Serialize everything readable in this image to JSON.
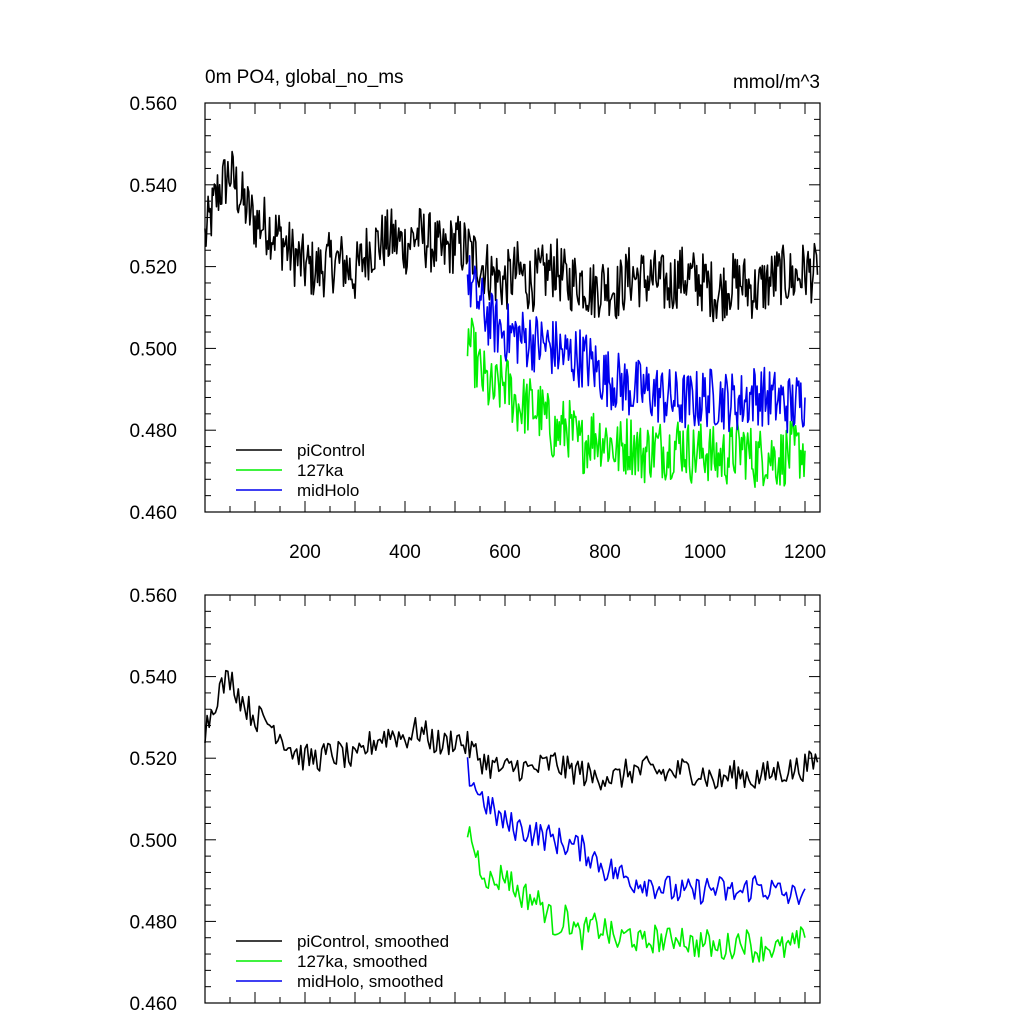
{
  "chart_data": [
    {
      "type": "line",
      "title": "0m PO4, global_no_ms",
      "units": "mmol/m^3",
      "xlim": [
        0,
        1230
      ],
      "ylim": [
        0.46,
        0.56
      ],
      "xticks": [
        200,
        400,
        600,
        800,
        1000,
        1200
      ],
      "xtick_labels": [
        "200",
        "400",
        "600",
        "800",
        "1000",
        "1200"
      ],
      "yticks": [
        0.46,
        0.48,
        0.5,
        0.52,
        0.54,
        0.56
      ],
      "ytick_labels": [
        "0.460",
        "0.480",
        "0.500",
        "0.520",
        "0.540",
        "0.560"
      ],
      "legend_position": "bottom-left",
      "series": [
        {
          "name": "piControl",
          "color": "#000000",
          "x_start": 0,
          "x_step": 25,
          "values": [
            0.527,
            0.538,
            0.543,
            0.536,
            0.531,
            0.53,
            0.527,
            0.523,
            0.52,
            0.519,
            0.521,
            0.521,
            0.518,
            0.524,
            0.526,
            0.527,
            0.525,
            0.528,
            0.526,
            0.523,
            0.526,
            0.524,
            0.521,
            0.518,
            0.516,
            0.519,
            0.516,
            0.518,
            0.52,
            0.516,
            0.517,
            0.514,
            0.516,
            0.514,
            0.518,
            0.517,
            0.517,
            0.515,
            0.518,
            0.517,
            0.516,
            0.513,
            0.516,
            0.516,
            0.514,
            0.516,
            0.518,
            0.517,
            0.519,
            0.518
          ]
        },
        {
          "name": "127ka",
          "color": "#00ee00",
          "x_start": 525,
          "x_step": 25,
          "values": [
            0.503,
            0.494,
            0.489,
            0.492,
            0.486,
            0.486,
            0.484,
            0.479,
            0.481,
            0.476,
            0.479,
            0.478,
            0.475,
            0.477,
            0.474,
            0.476,
            0.475,
            0.477,
            0.474,
            0.475,
            0.473,
            0.474,
            0.476,
            0.473,
            0.474,
            0.473,
            0.475,
            0.475
          ]
        },
        {
          "name": "midHolo",
          "color": "#0000ee",
          "x_start": 525,
          "x_step": 25,
          "values": [
            0.517,
            0.511,
            0.506,
            0.504,
            0.503,
            0.502,
            0.501,
            0.5,
            0.498,
            0.498,
            0.496,
            0.493,
            0.492,
            0.49,
            0.49,
            0.489,
            0.488,
            0.487,
            0.487,
            0.488,
            0.488,
            0.487,
            0.487,
            0.489,
            0.488,
            0.487,
            0.486,
            0.488
          ]
        }
      ]
    },
    {
      "type": "line",
      "title": "",
      "xlim": [
        0,
        1230
      ],
      "ylim": [
        0.46,
        0.56
      ],
      "xticks": [
        200,
        400,
        600,
        800,
        1000,
        1200
      ],
      "yticks": [
        0.46,
        0.48,
        0.5,
        0.52,
        0.54,
        0.56
      ],
      "ytick_labels": [
        "0.460",
        "0.480",
        "0.500",
        "0.520",
        "0.540",
        "0.560"
      ],
      "legend_position": "bottom-left",
      "series": [
        {
          "name": "piControl, smoothed",
          "color": "#000000",
          "x_start": 0,
          "x_step": 25,
          "values": [
            0.527,
            0.536,
            0.54,
            0.534,
            0.53,
            0.529,
            0.526,
            0.522,
            0.52,
            0.52,
            0.521,
            0.521,
            0.519,
            0.523,
            0.525,
            0.526,
            0.525,
            0.527,
            0.525,
            0.523,
            0.525,
            0.523,
            0.52,
            0.518,
            0.517,
            0.518,
            0.517,
            0.518,
            0.519,
            0.517,
            0.517,
            0.515,
            0.516,
            0.515,
            0.517,
            0.517,
            0.517,
            0.516,
            0.517,
            0.517,
            0.516,
            0.514,
            0.516,
            0.516,
            0.515,
            0.516,
            0.517,
            0.517,
            0.518,
            0.519
          ]
        },
        {
          "name": "127ka, smoothed",
          "color": "#00ee00",
          "x_start": 525,
          "x_step": 25,
          "values": [
            0.503,
            0.494,
            0.489,
            0.492,
            0.487,
            0.486,
            0.484,
            0.479,
            0.481,
            0.476,
            0.479,
            0.478,
            0.475,
            0.477,
            0.474,
            0.476,
            0.475,
            0.477,
            0.474,
            0.475,
            0.473,
            0.474,
            0.476,
            0.473,
            0.474,
            0.473,
            0.474,
            0.476
          ]
        },
        {
          "name": "midHolo, smoothed",
          "color": "#0000ee",
          "x_start": 525,
          "x_step": 25,
          "values": [
            0.517,
            0.511,
            0.507,
            0.504,
            0.503,
            0.502,
            0.501,
            0.5,
            0.499,
            0.498,
            0.496,
            0.493,
            0.492,
            0.49,
            0.49,
            0.489,
            0.488,
            0.487,
            0.487,
            0.488,
            0.488,
            0.487,
            0.487,
            0.489,
            0.488,
            0.487,
            0.486,
            0.488
          ]
        }
      ]
    }
  ]
}
